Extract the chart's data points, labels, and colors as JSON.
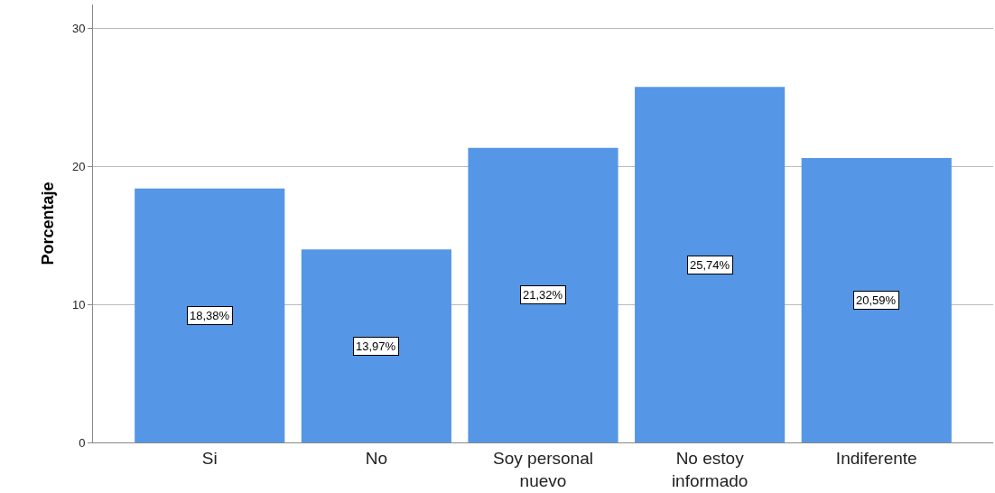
{
  "chart_data": {
    "type": "bar",
    "ylabel": "Porcentaje",
    "categories": [
      "Si",
      "No",
      "Soy personal\nnuevo",
      "No estoy\ninformado",
      "Indiferente"
    ],
    "values": [
      18.38,
      13.97,
      21.32,
      25.74,
      20.59
    ],
    "value_labels": [
      "18,38%",
      "13,97%",
      "21,32%",
      "25,74%",
      "20,59%"
    ],
    "color": "#5596e6",
    "ylim": [
      0,
      31.7
    ],
    "yticks": [
      0,
      10,
      20,
      30
    ],
    "grid": "y"
  }
}
